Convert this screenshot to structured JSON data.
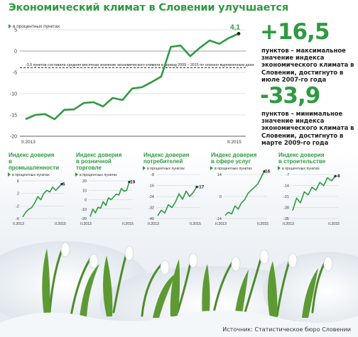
{
  "headline": "Экономический климат в Словении улучшается",
  "stats": [
    {
      "value": "+16,5",
      "text": "пунктов – максимальное значение индекса экономического климата в Словении, достигнуто в июле 2007-го года"
    },
    {
      "value": "-33,9",
      "text": "пунктов – минимальное значение индекса экономического климата в Словении, достигнуто в марте 2009-го года"
    }
  ],
  "source": "Источник: Статистическое бюро Словении",
  "colors": {
    "green": "#2e9a42",
    "axis": "#333333",
    "snow": "#eef2f6"
  },
  "chart_data": [
    {
      "type": "line",
      "title": "Экономический климат в Словении улучшается",
      "unit_label": "в процентных пунктах",
      "ylim": [
        -20,
        5
      ],
      "yticks": [
        5,
        0,
        -5,
        -10,
        -15,
        -20
      ],
      "xticks": [
        "II.2013",
        "II.2015"
      ],
      "annotation": "-3,9 пунктов составила средняя месячная значение экономического климата в период 2009 – 2015 по сезонно выровненным данным",
      "mean_value": -3.9,
      "end_label": "4,1",
      "series": [
        {
          "values": [
            -16,
            -15,
            -14.8,
            -16,
            -13.8,
            -13.7,
            -12.2,
            -12,
            -13,
            -11,
            -11.5,
            -8.8,
            -8.5,
            -7.3,
            -6,
            1,
            1.3,
            -1.2,
            0.8,
            2.5,
            1.7,
            3.1,
            4.1
          ]
        }
      ]
    },
    {
      "type": "line",
      "title": "Индекс доверия в промышленности",
      "unit_label": "в процентных пунктах",
      "ylim": [
        -6,
        6
      ],
      "yticks": [
        6,
        2,
        -2,
        -6
      ],
      "xticks": [
        "II.2013",
        "II.2015"
      ],
      "end_label": "5",
      "series": [
        {
          "values": [
            -5.5,
            -4,
            -3,
            -2.5,
            -1,
            1,
            0,
            2,
            3,
            2.5,
            4,
            3,
            4,
            5
          ]
        }
      ]
    },
    {
      "type": "line",
      "title": "Индекс доверия в розничной торговле",
      "unit_label": "в процентных пунктах",
      "ylim": [
        -20,
        20
      ],
      "yticks": [
        20,
        10,
        0,
        -10,
        -20
      ],
      "xticks": [
        "II.2013",
        "II.2015"
      ],
      "end_label": "19",
      "series": [
        {
          "values": [
            -18,
            -10,
            -14,
            -8,
            -9,
            -2,
            -6,
            2,
            0,
            3,
            6,
            5,
            12,
            9,
            10,
            19
          ]
        }
      ]
    },
    {
      "type": "line",
      "title": "Индекс доверия потребителей",
      "unit_label": "в процентных пунктах",
      "ylim": [
        -40,
        -8
      ],
      "yticks": [
        -8,
        -16,
        -24,
        -32,
        -40
      ],
      "xticks": [
        "II.2013",
        "II.2015"
      ],
      "end_label": "-17",
      "series": [
        {
          "values": [
            -38,
            -34,
            -36,
            -30,
            -32,
            -28,
            -22,
            -26,
            -20,
            -24,
            -21,
            -17
          ]
        }
      ]
    },
    {
      "type": "line",
      "title": "Индекс доверия в сфере услуг",
      "unit_label": "в процентных пунктах",
      "ylim": [
        -14,
        14
      ],
      "yticks": [
        14,
        0,
        -14
      ],
      "xticks": [
        "II.2013",
        "II.2015"
      ],
      "end_label": "16",
      "series": [
        {
          "values": [
            -12,
            -10,
            -11,
            -6,
            -8,
            -4,
            -2,
            2,
            4,
            6,
            8,
            12,
            16
          ]
        }
      ]
    },
    {
      "type": "line",
      "title": "Индекс доверия в строительстве",
      "unit_label": "в процентных пунктах",
      "ylim": [
        -35,
        -7
      ],
      "yticks": [
        -7,
        -14,
        -21,
        -28,
        -35
      ],
      "xticks": [
        "II.2013",
        "II.2015"
      ],
      "end_label": "-8",
      "series": [
        {
          "values": [
            -30,
            -22,
            -25,
            -18,
            -20,
            -15,
            -17,
            -12,
            -14,
            -9,
            -11,
            -8
          ]
        }
      ]
    }
  ]
}
